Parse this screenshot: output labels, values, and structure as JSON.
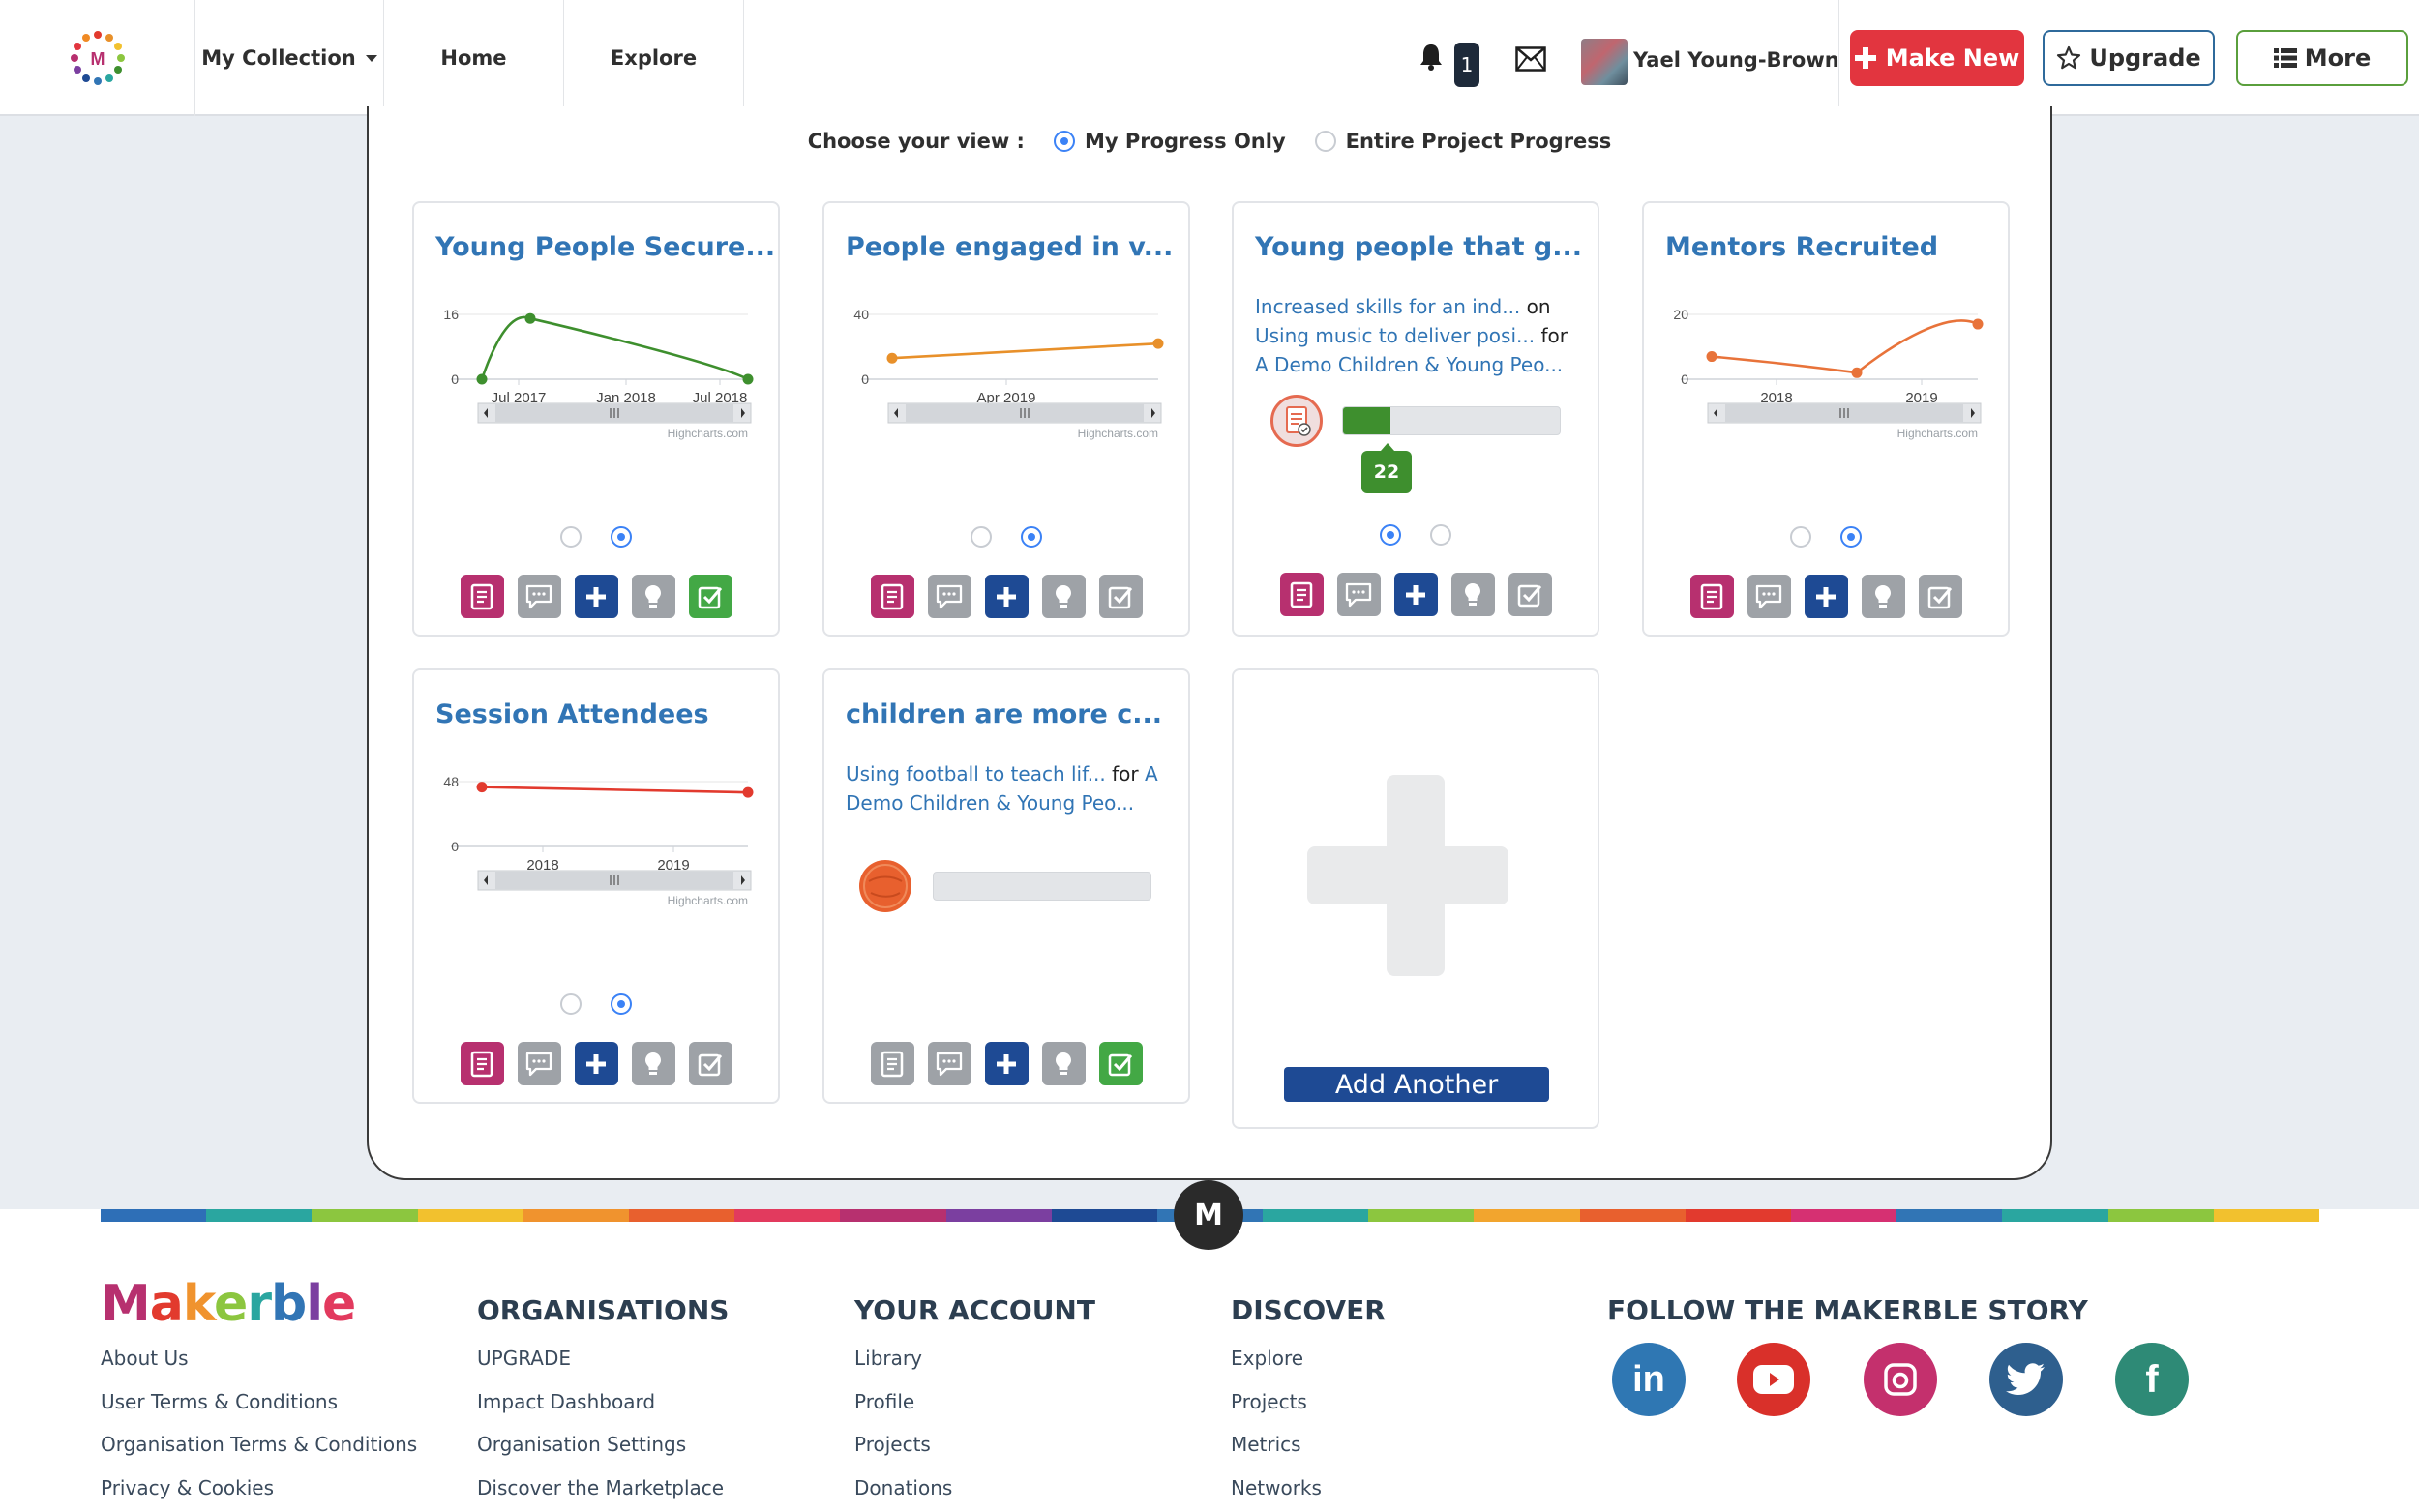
{
  "header": {
    "nav": {
      "collection": "My Collection",
      "home": "Home",
      "explore": "Explore"
    },
    "notification_count": "1",
    "user_name": "Yael Young-Brown",
    "make_new": "Make New",
    "upgrade": "Upgrade",
    "more": "More"
  },
  "view_selector": {
    "label": "Choose your view :",
    "options": [
      "My Progress Only",
      "Entire Project Progress"
    ],
    "selected": "My Progress Only"
  },
  "cards": [
    {
      "title": "Young People Secure...",
      "chart_data": {
        "type": "line",
        "color": "#3e8f2e",
        "x": [
          "2017-05",
          "2017-07",
          "2018-09"
        ],
        "y": [
          0,
          15,
          0
        ],
        "xticks": [
          "Jul 2017",
          "Jan 2018",
          "Jul 2018"
        ],
        "yticks": [
          "16",
          "0"
        ],
        "ylim": [
          0,
          16
        ],
        "credit": "Highcharts.com"
      },
      "page": 2
    },
    {
      "title": "People engaged in v...",
      "chart_data": {
        "type": "line",
        "color": "#e8902a",
        "x": [
          "start",
          "end"
        ],
        "y": [
          13,
          22
        ],
        "xticks": [
          "Apr 2019"
        ],
        "yticks": [
          "40",
          "0"
        ],
        "ylim": [
          0,
          40
        ],
        "credit": "Highcharts.com"
      },
      "page": 2
    },
    {
      "title": "Young people that g...",
      "text": {
        "link1": "Increased skills for an ind...",
        "on": "on",
        "link2": "Using music to deliver posi...",
        "for": "for",
        "link3": "A Demo Children & Young Peo..."
      },
      "progress_value": "22",
      "progress_fraction": 0.22,
      "page": 1
    },
    {
      "title": "Mentors Recruited",
      "chart_data": {
        "type": "line",
        "color": "#e8733a",
        "x": [
          "2017-09",
          "2018-09",
          "2019-06"
        ],
        "y": [
          7,
          2,
          17
        ],
        "xticks": [
          "2018",
          "2019"
        ],
        "yticks": [
          "20",
          "0"
        ],
        "ylim": [
          0,
          20
        ],
        "credit": "Highcharts.com"
      },
      "page": 2
    },
    {
      "title": "Session Attendees",
      "chart_data": {
        "type": "line",
        "color": "#e23a2e",
        "x": [
          "start",
          "end"
        ],
        "y": [
          44,
          40
        ],
        "xticks": [
          "2018",
          "2019"
        ],
        "yticks": [
          "48",
          "0"
        ],
        "ylim": [
          0,
          48
        ],
        "credit": "Highcharts.com"
      },
      "page": 2
    },
    {
      "title": "children are more c...",
      "text": {
        "link1": "Using football to teach lif...",
        "for": "for",
        "link2": "A Demo Children & Young Peo..."
      },
      "progress_fraction": 0
    }
  ],
  "add_another": "Add Another",
  "footer": {
    "brand": "Makerble",
    "col1": [
      "About Us",
      "User Terms & Conditions",
      "Organisation Terms & Conditions",
      "Privacy & Cookies"
    ],
    "organisations": {
      "heading": "ORGANISATIONS",
      "links": [
        "UPGRADE",
        "Impact Dashboard",
        "Organisation Settings",
        "Discover the Marketplace"
      ]
    },
    "account": {
      "heading": "YOUR ACCOUNT",
      "links": [
        "Library",
        "Profile",
        "Projects",
        "Donations"
      ]
    },
    "discover": {
      "heading": "DISCOVER",
      "links": [
        "Explore",
        "Projects",
        "Metrics",
        "Networks"
      ]
    },
    "follow": {
      "heading": "FOLLOW THE MAKERBLE STORY",
      "icons": [
        "linkedin-icon",
        "youtube-icon",
        "instagram-icon",
        "twitter-icon",
        "facebook-icon"
      ]
    },
    "m_badge": "M"
  }
}
